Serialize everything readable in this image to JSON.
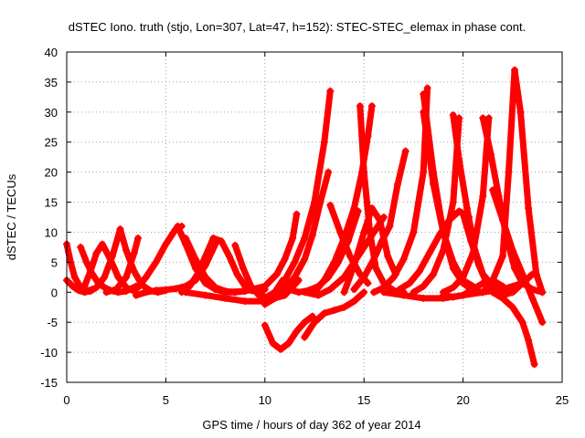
{
  "chart_data": {
    "type": "scatter",
    "title": "dSTEC Iono. truth (stjo, Lon=307, Lat=47, h=152): STEC-STEC_elemax in phase cont.",
    "xlabel": "GPS time / hours of day 362 of year 2014",
    "ylabel": "dSTEC  / TECUs",
    "xlim": [
      0,
      25
    ],
    "ylim": [
      -15,
      40
    ],
    "xticks": [
      0,
      5,
      10,
      15,
      20,
      25
    ],
    "yticks": [
      -15,
      -10,
      -5,
      0,
      5,
      10,
      15,
      20,
      25,
      30,
      35,
      40
    ],
    "grid": true,
    "marker": "plus",
    "color": "#ff0000",
    "series": [
      {
        "x": [
          0.0,
          0.2,
          0.4,
          0.7,
          1.0,
          1.3
        ],
        "y": [
          8.0,
          5.0,
          2.5,
          0.8,
          0.2,
          0.5
        ]
      },
      {
        "x": [
          0.0,
          0.3,
          0.6,
          0.9,
          1.2,
          1.5,
          1.9,
          2.3,
          2.7
        ],
        "y": [
          2.0,
          1.0,
          0.3,
          0.0,
          0.2,
          0.8,
          2.5,
          6.0,
          10.5
        ]
      },
      {
        "x": [
          0.7,
          1.0,
          1.3,
          1.6,
          1.9,
          2.2,
          2.6,
          3.0,
          3.5
        ],
        "y": [
          7.5,
          5.0,
          3.0,
          1.5,
          0.8,
          0.3,
          0.0,
          0.2,
          1.0
        ]
      },
      {
        "x": [
          0.9,
          1.2,
          1.5,
          1.8,
          2.2,
          2.6,
          3.0,
          3.4
        ],
        "y": [
          1.0,
          3.5,
          6.5,
          8.0,
          5.5,
          2.5,
          0.8,
          0.2
        ]
      },
      {
        "x": [
          2.7,
          3.0,
          3.4,
          3.8,
          4.2,
          4.6,
          5.0
        ],
        "y": [
          10.5,
          7.0,
          3.5,
          1.2,
          0.3,
          0.0,
          0.3
        ]
      },
      {
        "x": [
          2.0,
          2.5,
          3.0,
          3.4,
          3.6
        ],
        "y": [
          0.0,
          0.5,
          2.5,
          6.5,
          9.0
        ]
      },
      {
        "x": [
          3.6,
          4.0,
          4.5,
          5.0,
          5.5,
          5.8
        ],
        "y": [
          0.8,
          2.5,
          5.0,
          8.0,
          10.5,
          11.0
        ]
      },
      {
        "x": [
          3.5,
          4.0,
          4.5,
          5.0,
          5.5,
          6.0,
          6.5,
          7.0,
          7.5
        ],
        "y": [
          -0.5,
          0.0,
          0.3,
          0.4,
          0.6,
          1.0,
          2.0,
          4.5,
          8.0
        ]
      },
      {
        "x": [
          5.6,
          6.0,
          6.5,
          7.0,
          7.5,
          8.0,
          8.5
        ],
        "y": [
          11.0,
          8.0,
          4.0,
          1.5,
          0.5,
          0.0,
          0.0
        ]
      },
      {
        "x": [
          5.8,
          6.2,
          6.6,
          7.0,
          7.4,
          7.8
        ],
        "y": [
          0.0,
          1.0,
          3.0,
          6.0,
          9.0,
          8.5
        ]
      },
      {
        "x": [
          6.0,
          6.5,
          7.0,
          7.5,
          8.0,
          8.5,
          9.0
        ],
        "y": [
          9.0,
          5.5,
          2.5,
          0.8,
          0.2,
          0.0,
          0.2
        ]
      },
      {
        "x": [
          7.8,
          8.2,
          8.6,
          9.0,
          9.3,
          9.7,
          10.0
        ],
        "y": [
          8.5,
          6.0,
          3.0,
          1.0,
          0.3,
          0.0,
          0.5
        ]
      },
      {
        "x": [
          8.5,
          8.9,
          9.3,
          9.7,
          10.1,
          10.5,
          10.9
        ],
        "y": [
          7.8,
          4.0,
          1.0,
          -0.5,
          -0.8,
          0.0,
          2.0
        ]
      },
      {
        "x": [
          6.0,
          7.0,
          8.0,
          9.0,
          10.0,
          11.0,
          11.7
        ],
        "y": [
          0.0,
          -0.5,
          -1.0,
          -1.5,
          -1.5,
          -0.5,
          2.0
        ]
      },
      {
        "x": [
          8.0,
          9.0,
          10.0,
          10.6,
          11.0,
          11.4,
          11.6
        ],
        "y": [
          0.0,
          0.2,
          1.0,
          3.0,
          5.5,
          9.0,
          13.0
        ]
      },
      {
        "x": [
          10.0,
          10.4,
          10.8,
          11.2,
          11.6,
          12.0,
          12.4
        ],
        "y": [
          -5.5,
          -8.5,
          -9.5,
          -8.5,
          -6.5,
          -5.0,
          -4.0
        ]
      },
      {
        "x": [
          10.0,
          10.5,
          11.0,
          11.5,
          12.0,
          12.4,
          12.8,
          13.2
        ],
        "y": [
          -2.0,
          -1.0,
          0.5,
          2.5,
          5.5,
          9.5,
          15.0,
          20.0
        ]
      },
      {
        "x": [
          10.5,
          11.0,
          11.5,
          12.0,
          12.5,
          13.0,
          13.3
        ],
        "y": [
          0.0,
          2.0,
          5.0,
          9.0,
          15.0,
          25.0,
          33.5
        ]
      },
      {
        "x": [
          12.0,
          12.5,
          13.0,
          13.5,
          14.0,
          14.5,
          15.0
        ],
        "y": [
          -7.5,
          -5.0,
          -3.5,
          -3.0,
          -2.5,
          -1.5,
          0.0
        ]
      },
      {
        "x": [
          11.2,
          11.7,
          12.2,
          12.7,
          13.2,
          13.7,
          14.2,
          14.7
        ],
        "y": [
          0.5,
          0.0,
          0.3,
          1.0,
          2.5,
          5.0,
          8.5,
          13.5
        ]
      },
      {
        "x": [
          13.3,
          13.8,
          14.3,
          14.8,
          15.2
        ],
        "y": [
          14.5,
          10.0,
          6.0,
          3.0,
          1.5
        ]
      },
      {
        "x": [
          12.5,
          13.0,
          13.5,
          14.0,
          14.5,
          14.9,
          15.2,
          15.4
        ],
        "y": [
          0.0,
          2.0,
          5.0,
          9.0,
          14.0,
          20.0,
          26.0,
          31.0
        ]
      },
      {
        "x": [
          14.0,
          14.5,
          15.0,
          15.4,
          15.8,
          16.2,
          16.6
        ],
        "y": [
          0.0,
          4.5,
          10.0,
          14.0,
          12.0,
          6.0,
          3.0
        ]
      },
      {
        "x": [
          14.8,
          15.0,
          15.3,
          15.6,
          16.0,
          16.5,
          17.0
        ],
        "y": [
          31.0,
          20.0,
          10.0,
          4.0,
          1.5,
          0.3,
          0.0
        ]
      },
      {
        "x": [
          14.5,
          15.0,
          15.5,
          15.9,
          16.3,
          16.7,
          17.1
        ],
        "y": [
          0.5,
          2.5,
          5.5,
          8.5,
          11.0,
          18.0,
          23.5
        ]
      },
      {
        "x": [
          15.5,
          16.0,
          16.5,
          17.0,
          17.5,
          18.0,
          18.2
        ],
        "y": [
          0.0,
          0.8,
          2.5,
          5.5,
          10.0,
          20.0,
          34.0
        ]
      },
      {
        "x": [
          16.8,
          17.3,
          17.8,
          18.3,
          18.8,
          19.3,
          19.8,
          20.3
        ],
        "y": [
          0.5,
          1.5,
          3.5,
          6.5,
          9.5,
          12.0,
          13.5,
          12.5
        ]
      },
      {
        "x": [
          18.0,
          18.5,
          19.0,
          19.5,
          20.0,
          20.5,
          21.0
        ],
        "y": [
          33.0,
          20.0,
          10.0,
          4.0,
          1.5,
          0.3,
          0.0
        ]
      },
      {
        "x": [
          18.0,
          18.5,
          19.0,
          19.5,
          20.0,
          20.5
        ],
        "y": [
          30.0,
          18.0,
          10.0,
          5.0,
          2.0,
          1.0
        ]
      },
      {
        "x": [
          17.5,
          18.0,
          18.5,
          19.0,
          19.5,
          19.8
        ],
        "y": [
          0.0,
          1.0,
          3.0,
          7.0,
          15.0,
          29.0
        ]
      },
      {
        "x": [
          19.5,
          19.8,
          20.2,
          20.6,
          21.0,
          21.5,
          22.0
        ],
        "y": [
          29.5,
          22.0,
          14.0,
          7.0,
          3.0,
          1.0,
          0.2
        ]
      },
      {
        "x": [
          20.0,
          20.4,
          20.8,
          21.2,
          21.6,
          22.0
        ],
        "y": [
          13.0,
          8.5,
          4.5,
          1.5,
          0.5,
          0.0
        ]
      },
      {
        "x": [
          19.0,
          19.5,
          20.0,
          20.5,
          21.0,
          21.3
        ],
        "y": [
          0.0,
          0.8,
          2.5,
          6.5,
          16.0,
          29.0
        ]
      },
      {
        "x": [
          21.0,
          21.4,
          21.8,
          22.2,
          22.6,
          23.0,
          23.5,
          24.0
        ],
        "y": [
          29.0,
          23.0,
          16.0,
          9.0,
          4.0,
          1.5,
          0.5,
          0.0
        ]
      },
      {
        "x": [
          21.0,
          21.5,
          22.0,
          22.3,
          22.6,
          22.9,
          23.3,
          23.7,
          24.0
        ],
        "y": [
          0.0,
          2.0,
          6.0,
          20.0,
          37.0,
          30.0,
          14.0,
          3.0,
          0.0
        ]
      },
      {
        "x": [
          21.5,
          22.0,
          22.5,
          23.0,
          23.5,
          24.0
        ],
        "y": [
          17.0,
          12.0,
          7.0,
          3.0,
          -1.0,
          -5.0
        ]
      },
      {
        "x": [
          21.5,
          22.0,
          22.5,
          23.0,
          23.3,
          23.6
        ],
        "y": [
          0.0,
          -1.0,
          -2.5,
          -5.0,
          -8.0,
          -12.0
        ]
      },
      {
        "x": [
          19.0,
          19.5,
          20.0,
          20.5,
          21.0,
          21.5,
          22.0
        ],
        "y": [
          -0.5,
          -0.8,
          -0.5,
          0.5,
          1.5,
          2.0,
          1.0
        ]
      },
      {
        "x": [
          21.5,
          22.0,
          22.5,
          23.0,
          23.5
        ],
        "y": [
          0.0,
          -0.5,
          0.0,
          1.5,
          3.0
        ]
      },
      {
        "x": [
          16.0,
          17.0,
          18.0,
          19.0,
          20.0,
          21.0,
          22.0,
          23.0
        ],
        "y": [
          0.0,
          -0.5,
          -1.0,
          -1.0,
          -0.5,
          0.0,
          0.5,
          1.5
        ]
      },
      {
        "x": [
          12.0,
          12.7,
          13.3,
          14.0,
          14.5,
          15.0,
          15.5,
          16.0
        ],
        "y": [
          0.0,
          -0.5,
          0.5,
          2.5,
          5.0,
          7.5,
          10.0,
          12.5
        ]
      }
    ]
  }
}
